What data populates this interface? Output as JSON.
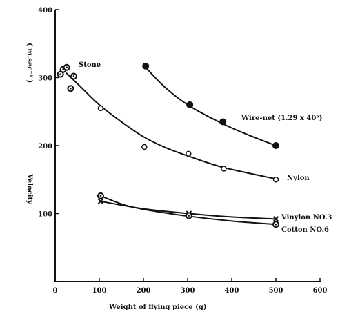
{
  "chart_data": {
    "type": "scatter",
    "title": "",
    "xlabel": "Weight of flying piece  (g)",
    "ylabel": "Velocity",
    "ylabel_unit": "( m.sec⁻¹ )",
    "xlim": [
      0,
      600
    ],
    "ylim": [
      0,
      400
    ],
    "xticks": [
      "0",
      "100",
      "200",
      "300",
      "400",
      "500",
      "600"
    ],
    "yticks": [
      "100",
      "200",
      "300",
      "400"
    ],
    "grid": false,
    "series": [
      {
        "name": "Stone",
        "label": "Stone",
        "marker": "double-circle",
        "x": [
          12,
          18,
          26,
          35,
          42
        ],
        "y": [
          305,
          312,
          315,
          284,
          302
        ],
        "curve": [
          [
            25,
            307
          ],
          [
            60,
            285
          ],
          [
            100,
            260
          ],
          [
            150,
            235
          ],
          [
            200,
            213
          ],
          [
            250,
            197
          ],
          [
            300,
            185
          ],
          [
            380,
            168
          ],
          [
            500,
            151
          ]
        ]
      },
      {
        "name": "Nylon",
        "label": "Nylon",
        "marker": "open-circle",
        "x": [
          103,
          202,
          302,
          382,
          500
        ],
        "y": [
          255,
          198,
          188,
          166,
          150
        ],
        "curve": [
          [
            25,
            307
          ],
          [
            60,
            285
          ],
          [
            100,
            260
          ],
          [
            150,
            235
          ],
          [
            200,
            213
          ],
          [
            250,
            197
          ],
          [
            300,
            185
          ],
          [
            380,
            168
          ],
          [
            500,
            151
          ]
        ]
      },
      {
        "name": "Wire-net",
        "label": "Wire-net (1.29 x 40⁵)",
        "marker": "filled-circle",
        "x": [
          205,
          305,
          380,
          500
        ],
        "y": [
          317,
          260,
          235,
          200
        ],
        "curve": [
          [
            205,
            315
          ],
          [
            250,
            285
          ],
          [
            305,
            258
          ],
          [
            380,
            232
          ],
          [
            440,
            215
          ],
          [
            500,
            200
          ]
        ]
      },
      {
        "name": "Vinylon No.3",
        "label": "Vinylon NO.3",
        "marker": "x",
        "x": [
          103,
          303,
          500
        ],
        "y": [
          118,
          100,
          92
        ],
        "curve": [
          [
            103,
            118
          ],
          [
            200,
            107
          ],
          [
            303,
            100
          ],
          [
            400,
            95
          ],
          [
            500,
            92
          ]
        ]
      },
      {
        "name": "Cotton No.6",
        "label": "Cotton NO.6",
        "marker": "double-circle",
        "x": [
          103,
          303,
          500
        ],
        "y": [
          126,
          97,
          84
        ],
        "curve": [
          [
            103,
            126
          ],
          [
            160,
            112
          ],
          [
            220,
            104
          ],
          [
            303,
            96
          ],
          [
            400,
            89
          ],
          [
            500,
            84
          ]
        ]
      }
    ]
  }
}
